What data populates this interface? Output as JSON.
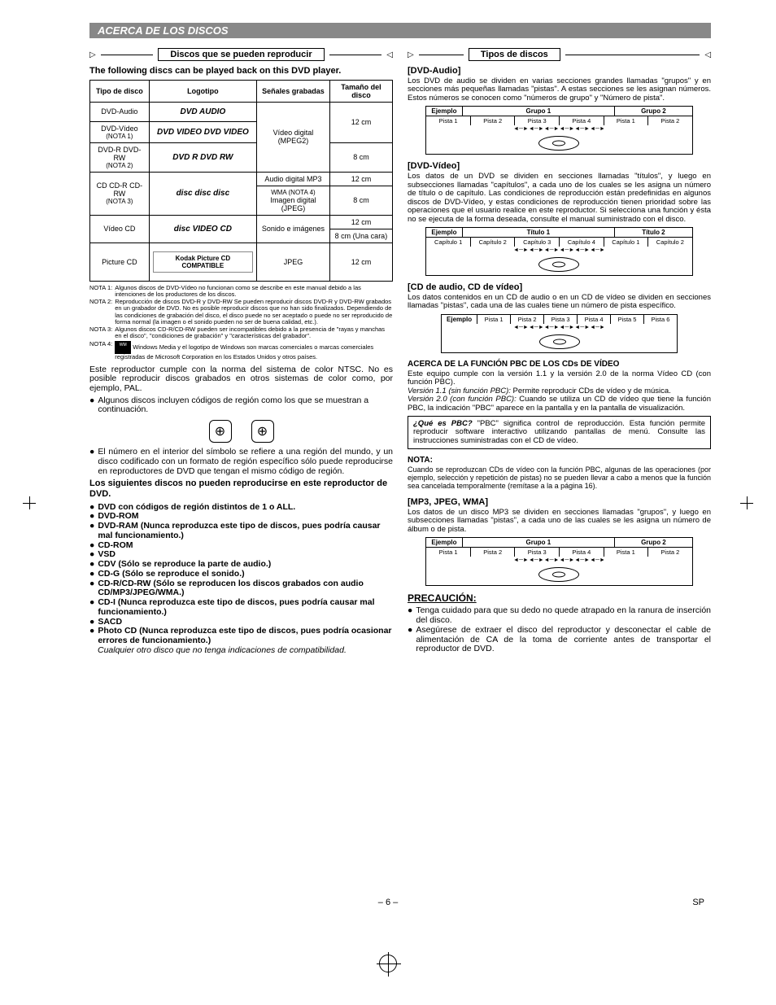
{
  "header": "ACERCA DE LOS DISCOS",
  "left": {
    "section_title": "Discos que se pueden reproducir",
    "intro": "The following discs can be played back on this DVD player.",
    "table": {
      "headers": [
        "Tipo de disco",
        "Logotipo",
        "Señales grabadas",
        "Tamaño del disco"
      ],
      "rows": [
        {
          "type": "DVD-Audio",
          "logo": "DVD AUDIO",
          "signal": "",
          "size": ""
        },
        {
          "type": "DVD-Vídeo",
          "note": "(NOTA 1)",
          "logo": "DVD VIDEO   DVD VIDEO",
          "signal": "Vídeo digital (MPEG2)",
          "size": "12 cm"
        },
        {
          "type": "DVD-R DVD-RW",
          "note": "(NOTA 2)",
          "logo": "DVD R   DVD RW",
          "signal": "",
          "size": "8 cm"
        },
        {
          "type": "CD CD-R CD-RW",
          "note": "(NOTA 3)",
          "logo": "disc disc disc",
          "signal_top": "Audio digital MP3",
          "signal_mid": "WMA (NOTA 4)",
          "signal_bot": "Imagen digital (JPEG)",
          "size_top": "12 cm",
          "size_bot": "8 cm"
        },
        {
          "type": "Vídeo CD",
          "logo": "disc VIDEO CD",
          "signal": "Sonido e imágenes",
          "size_top": "12 cm",
          "size_bot": "8 cm (Una cara)"
        },
        {
          "type": "Picture CD",
          "logo": "Kodak Picture CD COMPATIBLE",
          "signal": "JPEG",
          "size": "12 cm"
        }
      ]
    },
    "notes": {
      "n1_label": "NOTA 1:",
      "n1": "Algunos discos de DVD-Vídeo no funcionan como se describe en este manual debido a las intenciones de los productores de los discos.",
      "n2_label": "NOTA 2:",
      "n2": "Reproducción de discos DVD-R y DVD-RW Se pueden reproducir discos DVD-R y DVD-RW grabados en un grabador de DVD. No es posible reproducir discos que no han sido finalizados. Dependiendo de las condiciones de grabación del disco, el disco puede no ser aceptado o puede no ser reproducido de forma normal (la imagen o el sonido pueden no ser de buena calidad, etc.).",
      "n3_label": "NOTA 3:",
      "n3": "Algunos discos CD-R/CD-RW pueden ser incompatibles debido a la presencia de \"rayas y manchas en el disco\", \"condiciones de grabación\" y \"características del grabador\".",
      "n4_label": "NOTA 4:",
      "n4": "Windows Media y el logotipo de Windows son marcas comerciales o marcas comerciales registradas de Microsoft Corporation en los Estados Unidos y otros países."
    },
    "para1": "Este reproductor cumple con la norma del sistema de color NTSC. No es posible reproducir discos grabados en otros sistemas de color como, por ejemplo, PAL.",
    "bullet1": "Algunos discos incluyen códigos de región como los que se muestran a continuación.",
    "bullet2": "El número en el interior del símbolo se refiere a una región del mundo, y un disco codificado con un formato de región específico sólo puede reproducirse en reproductores de DVD que tengan el mismo código de región.",
    "no_play_intro": "Los siguientes discos no pueden reproducirse en este reproductor de DVD.",
    "no_play": [
      "DVD con códigos de región distintos de 1 o ALL.",
      "DVD-ROM",
      "DVD-RAM (Nunca reproduzca este tipo de discos, pues podría causar mal funcionamiento.)",
      "CD-ROM",
      "VSD",
      "CDV (Sólo se reproduce la parte de audio.)",
      "CD-G (Sólo se reproduce el sonido.)",
      "CD-R/CD-RW (Sólo se reproducen los discos grabados con audio CD/MP3/JPEG/WMA.)",
      "CD-I (Nunca reproduzca este tipo de discos, pues podría causar mal funcionamiento.)",
      "SACD",
      "Photo CD (Nunca reproduzca este tipo de discos, pues podría ocasionar errores de funcionamiento.)"
    ],
    "tail_italic": "Cualquier otro disco que no tenga indicaciones de compatibilidad."
  },
  "right": {
    "section_title": "Tipos de discos",
    "dvd_audio_h": "[DVD-Audio]",
    "dvd_audio_p": "Los DVD de audio se dividen en varias secciones grandes llamadas \"grupos\" y en secciones más pequeñas llamadas \"pistas\". A estas secciones se les asignan números. Estos números se conocen como \"números de grupo\" y \"Número de pista\".",
    "diag1": {
      "ejemplo": "Ejemplo",
      "g1": "Grupo 1",
      "g2": "Grupo 2",
      "tracks": [
        "Pista 1",
        "Pista 2",
        "Pista 3",
        "Pista 4",
        "Pista 1",
        "Pista 2"
      ]
    },
    "dvd_video_h": "[DVD-Vídeo]",
    "dvd_video_p": "Los datos de un DVD se dividen en secciones llamadas \"títulos\", y luego en subsecciones llamadas \"capítulos\", a cada uno de los cuales se les asigna un número de título o de capítulo. Las condiciones de reproducción están predefinidas en algunos discos de DVD-Vídeo, y estas condiciones de reproducción tienen prioridad sobre las operaciones que el usuario realice en este reproductor. Si selecciona una función y ésta no se ejecuta de la forma deseada, consulte el manual suministrado con el disco.",
    "diag2": {
      "ejemplo": "Ejemplo",
      "t1": "Título 1",
      "t2": "Título 2",
      "caps": [
        "Capítulo 1",
        "Capítulo 2",
        "Capítulo 3",
        "Capítulo 4",
        "Capítulo 1",
        "Capítulo 2"
      ]
    },
    "cd_h": "[CD de audio, CD de vídeo]",
    "cd_p": "Los datos contenidos en un CD de audio o en un CD de vídeo se dividen en secciones llamadas \"pistas\", cada una de las cuales tiene un número de pista específico.",
    "diag3": {
      "ejemplo": "Ejemplo",
      "tracks": [
        "Pista 1",
        "Pista 2",
        "Pista 3",
        "Pista 4",
        "Pista 5",
        "Pista 6"
      ]
    },
    "pbc_h": "ACERCA DE LA FUNCIÓN PBC DE LOS CDs DE VÍDEO",
    "pbc_p1": "Este equipo cumple con la versión 1.1 y la versión 2.0 de la norma Vídeo CD (con función PBC).",
    "pbc_v11_i": "Versión 1.1 (sin función PBC):",
    "pbc_v11": " Permite reproducir CDs de vídeo y de música.",
    "pbc_v20_i": "Versión 2.0 (con función PBC):",
    "pbc_v20": " Cuando se utiliza un CD de vídeo que tiene la función PBC, la indicación \"PBC\" aparece en la pantalla y en la pantalla de visualización.",
    "pbc_box_q": "¿Qué es PBC?",
    "pbc_box": "  \"PBC\" significa control de reproducción. Esta función permite reproducir software interactivo utilizando pantallas de menú. Consulte las instrucciones suministradas con el CD de vídeo.",
    "nota_h": "NOTA:",
    "nota_p": "Cuando se reproduzcan CDs de vídeo con la función PBC, algunas de las operaciones (por ejemplo, selección y repetición de pistas) no se pueden llevar a cabo a menos que la función sea cancelada temporalmente (remítase a la a página 16).",
    "mp3_h": "[MP3, JPEG, WMA]",
    "mp3_p": "Los datos de un disco MP3 se dividen en secciones llamadas \"grupos\", y luego en subsecciones llamadas \"pistas\", a cada uno de las cuales se les asigna un número de álbum o de pista.",
    "diag4": {
      "ejemplo": "Ejemplo",
      "g1": "Grupo 1",
      "g2": "Grupo 2",
      "tracks": [
        "Pista 1",
        "Pista 2",
        "Pista 3",
        "Pista 4",
        "Pista 1",
        "Pista 2"
      ]
    },
    "precaution_h": "PRECAUCIÓN:",
    "precaution": [
      "Tenga cuidado para que su dedo no quede atrapado en la ranura de inserción del disco.",
      "Asegúrese de extraer el disco del reproductor y desconectar el cable de alimentación de CA de la toma de corriente antes de transportar el reproductor de DVD."
    ]
  },
  "footer_page": "– 6 –",
  "footer_sp": "SP"
}
